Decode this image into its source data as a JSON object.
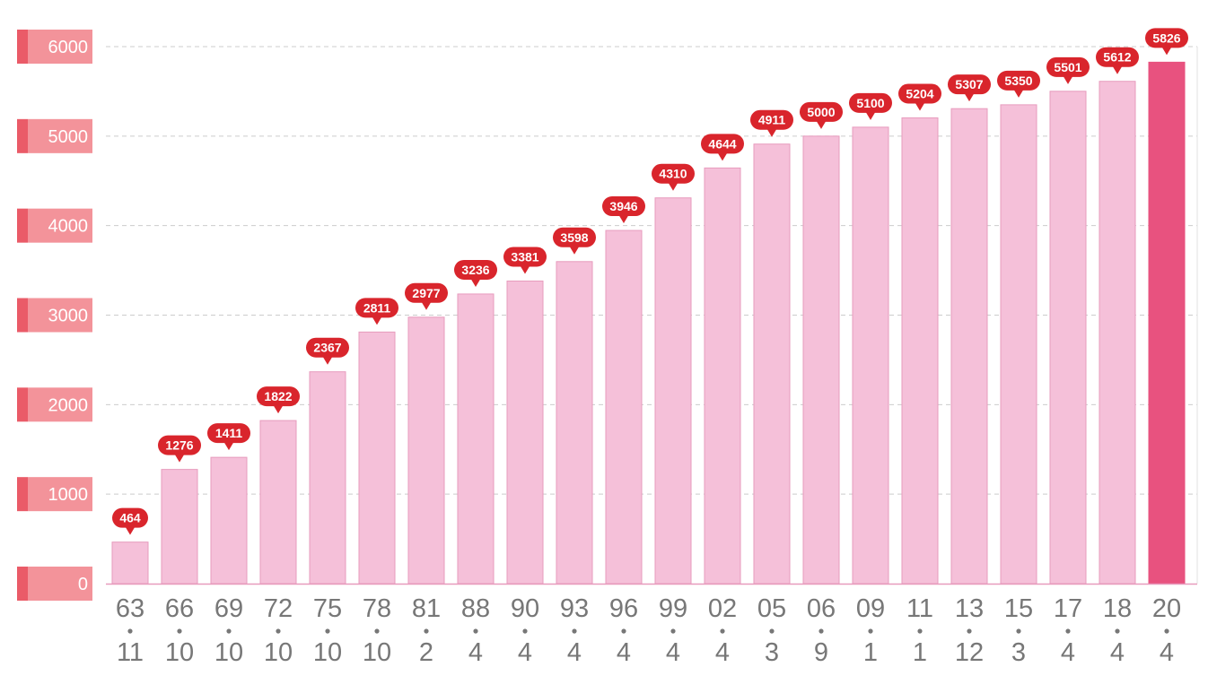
{
  "chart_data": {
    "type": "bar",
    "categories": [
      {
        "top": "63",
        "bottom": "11"
      },
      {
        "top": "66",
        "bottom": "10"
      },
      {
        "top": "69",
        "bottom": "10"
      },
      {
        "top": "72",
        "bottom": "10"
      },
      {
        "top": "75",
        "bottom": "10"
      },
      {
        "top": "78",
        "bottom": "10"
      },
      {
        "top": "81",
        "bottom": "2"
      },
      {
        "top": "88",
        "bottom": "4"
      },
      {
        "top": "90",
        "bottom": "4"
      },
      {
        "top": "93",
        "bottom": "4"
      },
      {
        "top": "96",
        "bottom": "4"
      },
      {
        "top": "99",
        "bottom": "4"
      },
      {
        "top": "02",
        "bottom": "4"
      },
      {
        "top": "05",
        "bottom": "3"
      },
      {
        "top": "06",
        "bottom": "9"
      },
      {
        "top": "09",
        "bottom": "1"
      },
      {
        "top": "11",
        "bottom": "1"
      },
      {
        "top": "13",
        "bottom": "12"
      },
      {
        "top": "15",
        "bottom": "3"
      },
      {
        "top": "17",
        "bottom": "4"
      },
      {
        "top": "18",
        "bottom": "4"
      },
      {
        "top": "20",
        "bottom": "4"
      }
    ],
    "values": [
      464,
      1276,
      1411,
      1822,
      2367,
      2811,
      2977,
      3236,
      3381,
      3598,
      3946,
      4310,
      4644,
      4911,
      5000,
      5100,
      5204,
      5307,
      5350,
      5501,
      5612,
      5826
    ],
    "highlight_index": 21,
    "ylim": [
      0,
      6000
    ],
    "yticks": [
      "0",
      "1000",
      "2000",
      "3000",
      "4000",
      "5000",
      "6000"
    ],
    "grid": true,
    "title": "",
    "xlabel": "",
    "ylabel": "",
    "colors": {
      "bar": "#f5c0d9",
      "bar_stroke": "#e79bbd",
      "bar_highlight": "#e8527f",
      "label_bubble": "#d9252c",
      "ytick_badge": "#f3939a",
      "ytick_badge_dark": "#ea5b68",
      "grid": "#cccccc",
      "axis": "#e79bbd"
    }
  }
}
